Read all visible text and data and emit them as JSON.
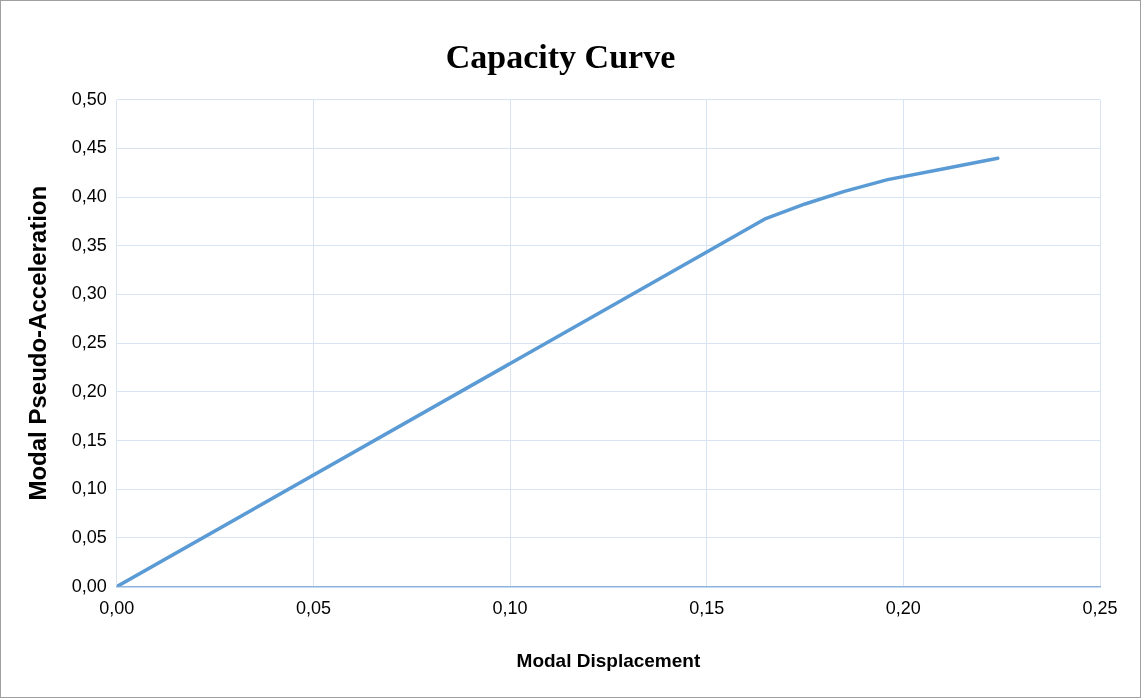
{
  "chart_data": {
    "type": "line",
    "title": "Capacity Curve",
    "xlabel": "Modal Displacement",
    "ylabel": "Modal Pseudo-Acceleration",
    "series": [
      {
        "color": "#5b9bd5",
        "x": [
          0,
          0.165,
          0.175,
          0.185,
          0.196,
          0.21,
          0.224
        ],
        "values": [
          0,
          0.378,
          0.393,
          0.406,
          0.418,
          0.429,
          0.44
        ]
      }
    ],
    "xlim": [
      0,
      0.25
    ],
    "xticks": [
      {
        "value": 0,
        "label": "0,00"
      },
      {
        "value": 0.05,
        "label": "0,05"
      },
      {
        "value": 0.1,
        "label": "0,10"
      },
      {
        "value": 0.15,
        "label": "0,15"
      },
      {
        "value": 0.2,
        "label": "0,20"
      },
      {
        "value": 0.25,
        "label": "0,25"
      }
    ],
    "ylim": [
      0,
      0.5
    ],
    "yticks": [
      {
        "value": 0,
        "label": "0,00"
      },
      {
        "value": 0.05,
        "label": "0,05"
      },
      {
        "value": 0.1,
        "label": "0,10"
      },
      {
        "value": 0.15,
        "label": "0,15"
      },
      {
        "value": 0.2,
        "label": "0,20"
      },
      {
        "value": 0.25,
        "label": "0,25"
      },
      {
        "value": 0.3,
        "label": "0,30"
      },
      {
        "value": 0.35,
        "label": "0,35"
      },
      {
        "value": 0.4,
        "label": "0,40"
      },
      {
        "value": 0.45,
        "label": "0,45"
      },
      {
        "value": 0.5,
        "label": "0,50"
      }
    ],
    "grid": true,
    "legend": false,
    "marker": "none",
    "line_style": "solid"
  }
}
